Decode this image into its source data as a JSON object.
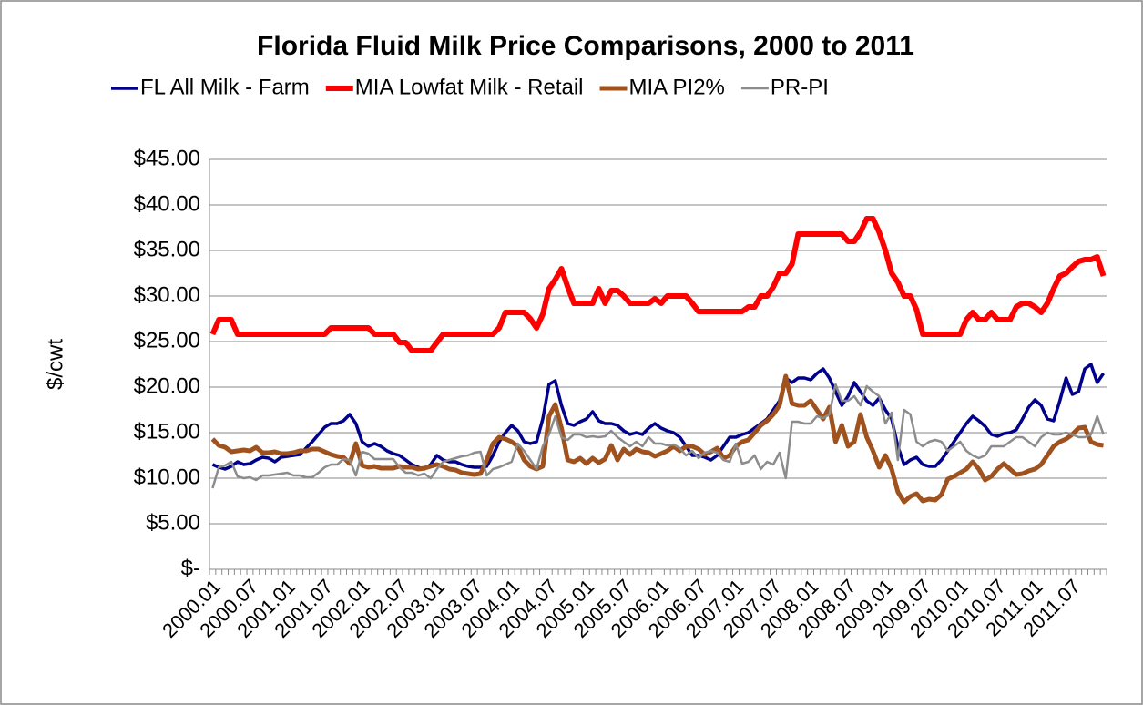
{
  "chart_data": {
    "type": "line",
    "title": "Florida Fluid Milk Price Comparisons, 2000 to 2011",
    "y_label": "$/cwt",
    "ylim": [
      0,
      45
    ],
    "yticks": [
      {
        "value": 0,
        "label": "$-"
      },
      {
        "value": 5,
        "label": "$5.00"
      },
      {
        "value": 10,
        "label": "$10.00"
      },
      {
        "value": 15,
        "label": "$15.00"
      },
      {
        "value": 20,
        "label": "$20.00"
      },
      {
        "value": 25,
        "label": "$25.00"
      },
      {
        "value": 30,
        "label": "$30.00"
      },
      {
        "value": 35,
        "label": "$35.00"
      },
      {
        "value": 40,
        "label": "$40.00"
      },
      {
        "value": 45,
        "label": "$45.00"
      }
    ],
    "grid": true,
    "legend": "top",
    "categories": [
      "2000.01",
      null,
      null,
      null,
      null,
      null,
      "2000.07",
      null,
      null,
      null,
      null,
      null,
      "2001.01",
      null,
      null,
      null,
      null,
      null,
      "2001.07",
      null,
      null,
      null,
      null,
      null,
      "2002.01",
      null,
      null,
      null,
      null,
      null,
      "2002.07",
      null,
      null,
      null,
      null,
      null,
      "2003.01",
      null,
      null,
      null,
      null,
      null,
      "2003.07",
      null,
      null,
      null,
      null,
      null,
      "2004.01",
      null,
      null,
      null,
      null,
      null,
      "2004.07",
      null,
      null,
      null,
      null,
      null,
      "2005.01",
      null,
      null,
      null,
      null,
      null,
      "2005.07",
      null,
      null,
      null,
      null,
      null,
      "2006.01",
      null,
      null,
      null,
      null,
      null,
      "2006.07",
      null,
      null,
      null,
      null,
      null,
      "2007.01",
      null,
      null,
      null,
      null,
      null,
      "2007.07",
      null,
      null,
      null,
      null,
      null,
      "2008.01",
      null,
      null,
      null,
      null,
      null,
      "2008.07",
      null,
      null,
      null,
      null,
      null,
      "2009.01",
      null,
      null,
      null,
      null,
      null,
      "2009.07",
      null,
      null,
      null,
      null,
      null,
      "2010.01",
      null,
      null,
      null,
      null,
      null,
      "2010.07",
      null,
      null,
      null,
      null,
      null,
      "2011.01",
      null,
      null,
      null,
      null,
      null,
      "2011.07",
      null,
      null,
      null,
      null,
      null
    ],
    "series": [
      {
        "name": "FL All Milk - Farm",
        "color": "#00008b",
        "values": [
          11.5,
          11.2,
          11.0,
          11.3,
          11.8,
          11.5,
          11.6,
          12.0,
          12.3,
          12.2,
          11.8,
          12.3,
          12.4,
          12.5,
          12.6,
          13.3,
          14.0,
          14.8,
          15.6,
          16.0,
          16.0,
          16.3,
          17.0,
          16.0,
          14.0,
          13.5,
          13.8,
          13.5,
          13.0,
          12.7,
          12.5,
          12.0,
          11.5,
          11.2,
          11.0,
          11.5,
          12.5,
          12.0,
          11.8,
          11.8,
          11.5,
          11.3,
          11.2,
          11.2,
          11.3,
          12.5,
          14.0,
          15.0,
          15.8,
          15.2,
          14.0,
          13.8,
          14.0,
          16.5,
          20.3,
          20.7,
          18.0,
          16.0,
          15.8,
          16.2,
          16.5,
          17.3,
          16.3,
          16.0,
          16.0,
          15.8,
          15.2,
          14.8,
          15.0,
          14.8,
          15.5,
          16.0,
          15.5,
          15.2,
          15.0,
          14.5,
          13.5,
          12.5,
          12.5,
          12.3,
          12.0,
          12.5,
          13.5,
          14.5,
          14.5,
          14.8,
          15.0,
          15.5,
          16.0,
          16.5,
          17.5,
          18.5,
          21.0,
          20.5,
          21.0,
          21.0,
          20.8,
          21.5,
          22.0,
          21.0,
          19.5,
          18.0,
          19.0,
          20.5,
          19.5,
          18.5,
          18.0,
          18.8,
          17.5,
          16.5,
          13.5,
          11.5,
          12.0,
          12.3,
          11.5,
          11.3,
          11.3,
          12.0,
          13.0,
          14.0,
          15.0,
          16.0,
          16.8,
          16.3,
          15.7,
          14.8,
          14.6,
          14.9,
          15.0,
          15.3,
          16.5,
          17.8,
          18.6,
          18.0,
          16.5,
          16.3,
          18.5,
          21.0,
          19.2,
          19.5,
          22.0,
          22.5,
          20.5,
          21.5
        ]
      },
      {
        "name": "MIA Lowfat Milk - Retail",
        "color": "#ff0000",
        "values": [
          25.8,
          27.4,
          27.4,
          27.4,
          25.8,
          25.8,
          25.8,
          25.8,
          25.8,
          25.8,
          25.8,
          25.8,
          25.8,
          25.8,
          25.8,
          25.8,
          25.8,
          25.8,
          25.8,
          26.5,
          26.5,
          26.5,
          26.5,
          26.5,
          26.5,
          26.5,
          25.8,
          25.8,
          25.8,
          25.8,
          24.9,
          24.9,
          24.0,
          24.0,
          24.0,
          24.0,
          24.9,
          25.8,
          25.8,
          25.8,
          25.8,
          25.8,
          25.8,
          25.8,
          25.8,
          25.8,
          26.5,
          28.2,
          28.2,
          28.2,
          28.2,
          27.5,
          26.5,
          28.0,
          30.8,
          31.8,
          33.0,
          31.0,
          29.2,
          29.2,
          29.2,
          29.2,
          30.8,
          29.2,
          30.6,
          30.6,
          30.0,
          29.2,
          29.2,
          29.2,
          29.2,
          29.7,
          29.2,
          30.0,
          30.0,
          30.0,
          30.0,
          29.2,
          28.3,
          28.3,
          28.3,
          28.3,
          28.3,
          28.3,
          28.3,
          28.3,
          28.8,
          28.8,
          30.0,
          30.0,
          31.0,
          32.5,
          32.5,
          33.5,
          36.8,
          36.8,
          36.8,
          36.8,
          36.8,
          36.8,
          36.8,
          36.8,
          36.0,
          36.0,
          37.0,
          38.5,
          38.5,
          37.0,
          35.0,
          32.5,
          31.5,
          30.0,
          30.0,
          28.5,
          25.8,
          25.8,
          25.8,
          25.8,
          25.8,
          25.8,
          25.8,
          27.4,
          28.2,
          27.4,
          27.4,
          28.2,
          27.4,
          27.4,
          27.4,
          28.8,
          29.2,
          29.2,
          28.8,
          28.2,
          29.2,
          30.8,
          32.2,
          32.5,
          33.2,
          33.8,
          34.0,
          34.0,
          34.3,
          32.2
        ]
      },
      {
        "name": "MIA PI2%",
        "color": "#a0521e",
        "values": [
          14.3,
          13.6,
          13.4,
          12.9,
          13.0,
          13.1,
          13.0,
          13.4,
          12.8,
          12.8,
          12.9,
          12.7,
          12.7,
          12.8,
          13.0,
          13.0,
          13.2,
          13.2,
          12.9,
          12.6,
          12.4,
          12.3,
          11.6,
          13.8,
          11.4,
          11.2,
          11.3,
          11.1,
          11.1,
          11.1,
          11.3,
          11.2,
          11.2,
          11.0,
          11.1,
          11.3,
          11.5,
          11.3,
          11.0,
          10.9,
          10.6,
          10.5,
          10.4,
          10.5,
          12.0,
          13.8,
          14.5,
          14.3,
          14.0,
          13.5,
          12.0,
          11.3,
          11.0,
          11.3,
          16.8,
          18.1,
          15.5,
          12.0,
          11.8,
          12.2,
          11.6,
          12.2,
          11.7,
          12.1,
          13.6,
          12.0,
          13.2,
          12.6,
          13.2,
          12.9,
          12.8,
          12.4,
          12.7,
          13.0,
          13.5,
          13.0,
          13.5,
          13.5,
          13.2,
          12.6,
          12.9,
          13.3,
          12.2,
          12.5,
          13.5,
          14.0,
          14.2,
          15.0,
          15.8,
          16.3,
          17.0,
          18.0,
          21.2,
          18.2,
          18.0,
          18.0,
          18.5,
          17.5,
          16.5,
          17.8,
          14.0,
          15.8,
          13.5,
          14.0,
          17.0,
          14.5,
          13.0,
          11.2,
          12.5,
          11.0,
          8.5,
          7.4,
          8.0,
          8.3,
          7.5,
          7.7,
          7.6,
          8.2,
          9.9,
          10.2,
          10.6,
          11.0,
          11.8,
          11.0,
          9.8,
          10.2,
          11.0,
          11.6,
          11.0,
          10.4,
          10.5,
          10.8,
          11.0,
          11.5,
          12.5,
          13.5,
          14.0,
          14.3,
          14.8,
          15.5,
          15.6,
          14.0,
          13.7,
          13.6
        ]
      },
      {
        "name": "PR-PI",
        "color": "#8c8c8c",
        "values": [
          8.9,
          11.2,
          11.4,
          11.8,
          10.2,
          10.0,
          10.1,
          9.8,
          10.3,
          10.3,
          10.4,
          10.5,
          10.6,
          10.3,
          10.3,
          10.1,
          10.1,
          10.6,
          11.2,
          11.5,
          11.5,
          12.1,
          12.0,
          10.3,
          12.9,
          12.7,
          12.1,
          12.1,
          12.1,
          12.1,
          11.2,
          10.6,
          10.6,
          10.3,
          10.5,
          10.0,
          11.0,
          11.8,
          12.0,
          12.2,
          12.4,
          12.5,
          12.8,
          12.9,
          10.3,
          11.0,
          11.2,
          11.5,
          11.8,
          13.8,
          13.0,
          12.0,
          11.0,
          13.5,
          14.8,
          16.8,
          14.5,
          14.2,
          14.8,
          14.8,
          14.5,
          14.6,
          14.5,
          14.6,
          15.2,
          14.5,
          14.0,
          13.5,
          14.0,
          13.5,
          14.5,
          13.8,
          13.8,
          13.6,
          13.7,
          13.3,
          12.5,
          13.0,
          12.2,
          12.8,
          13.0,
          12.8,
          12.0,
          11.8,
          13.8,
          11.6,
          11.8,
          12.5,
          11.0,
          11.8,
          11.5,
          12.8,
          10.0,
          16.2,
          16.2,
          16.0,
          16.0,
          16.8,
          16.6,
          17.0,
          20.3,
          18.5,
          18.5,
          19.0,
          18.0,
          20.1,
          19.5,
          19.0,
          16.0,
          17.2,
          12.0,
          17.5,
          17.0,
          14.0,
          13.5,
          14.0,
          14.2,
          14.0,
          13.0,
          13.5,
          14.0,
          13.0,
          12.5,
          12.2,
          12.5,
          13.5,
          13.5,
          13.5,
          14.0,
          14.5,
          14.5,
          14.0,
          13.5,
          14.5,
          15.0,
          14.8,
          14.8,
          15.0,
          14.8,
          14.5,
          14.5,
          14.8,
          16.8,
          14.8
        ]
      }
    ]
  }
}
